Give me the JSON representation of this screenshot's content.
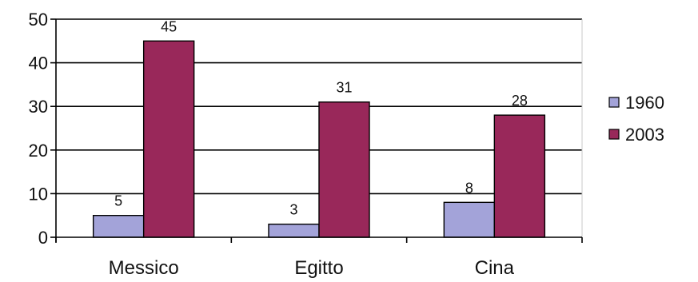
{
  "chart_data": {
    "type": "bar",
    "categories": [
      "Messico",
      "Egitto",
      "Cina"
    ],
    "series": [
      {
        "name": "1960",
        "values": [
          5,
          3,
          8
        ],
        "color": "#a3a3d9"
      },
      {
        "name": "2003",
        "values": [
          45,
          31,
          28
        ],
        "color": "#99285a"
      }
    ],
    "yticks": [
      "0",
      "10",
      "20",
      "30",
      "40",
      "50"
    ],
    "ylim": [
      0,
      50
    ],
    "grid": true,
    "legend_position": "right"
  }
}
